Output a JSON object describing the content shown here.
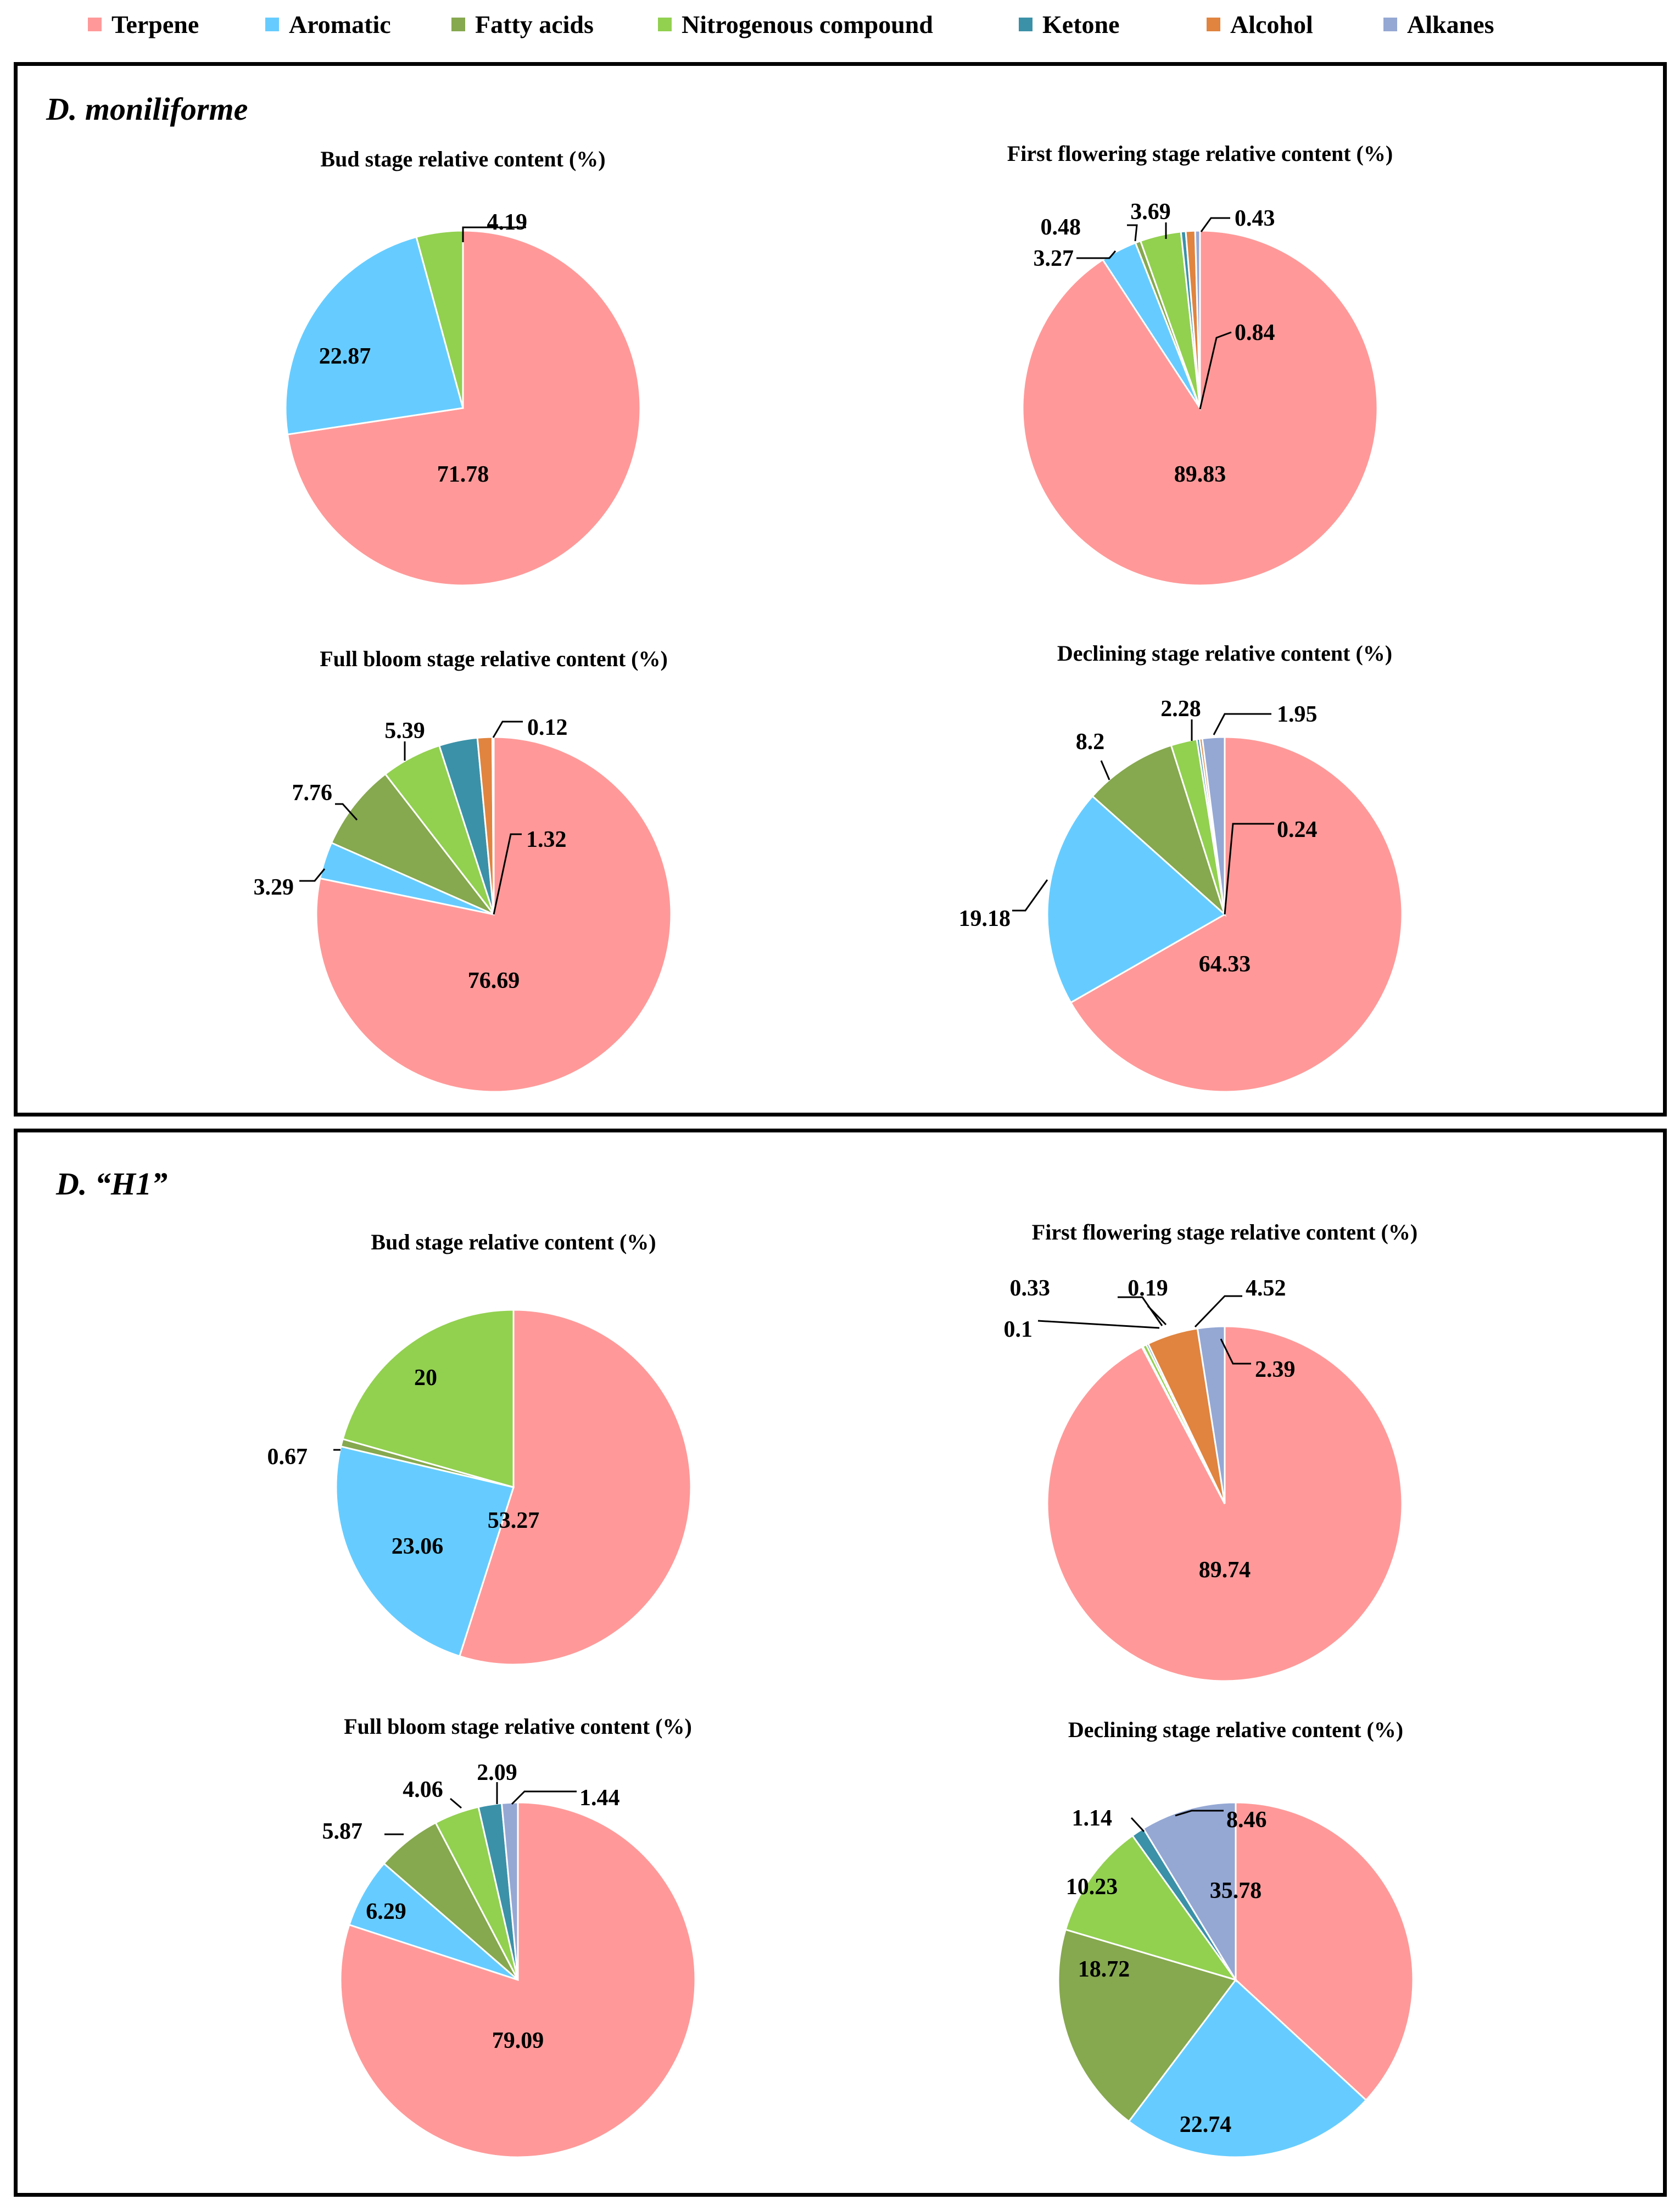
{
  "legend": [
    {
      "label": "Terpene",
      "color": "#ff9999"
    },
    {
      "label": "Aromatic",
      "color": "#66ccff"
    },
    {
      "label": "Fatty acids",
      "color": "#86a84f"
    },
    {
      "label": "Nitrogenous compound",
      "color": "#92d050"
    },
    {
      "label": "Ketone",
      "color": "#3b91a8"
    },
    {
      "label": "Alcohol",
      "color": "#e0843f"
    },
    {
      "label": "Alkanes",
      "color": "#95a8d4"
    }
  ],
  "panels": [
    {
      "title": "D. moniliforme"
    },
    {
      "title": "D. “H1”"
    }
  ],
  "chart_data": [
    {
      "type": "pie",
      "panel": 0,
      "title": "Bud stage relative content (%)",
      "slices": [
        {
          "category": "Terpene",
          "value": 71.78,
          "label": "71.78"
        },
        {
          "category": "Aromatic",
          "value": 22.87,
          "label": "22.87"
        },
        {
          "category": "Nitrogenous compound",
          "value": 4.19,
          "label": "4.19"
        }
      ]
    },
    {
      "type": "pie",
      "panel": 0,
      "title": "First flowering stage relative content (%)",
      "slices": [
        {
          "category": "Terpene",
          "value": 89.83,
          "label": "89.83"
        },
        {
          "category": "Aromatic",
          "value": 3.27,
          "label": "3.27"
        },
        {
          "category": "Fatty acids",
          "value": 0.48,
          "label": "0.48"
        },
        {
          "category": "Nitrogenous compound",
          "value": 3.69,
          "label": "3.69"
        },
        {
          "category": "Ketone",
          "value": 0.43,
          "label": "0.43"
        },
        {
          "category": "Alcohol",
          "value": 0.84,
          "label": "0.84"
        },
        {
          "category": "Alkanes",
          "value": 0.43,
          "label": ""
        }
      ]
    },
    {
      "type": "pie",
      "panel": 0,
      "title": "Full bloom stage relative content (%)",
      "slices": [
        {
          "category": "Terpene",
          "value": 76.69,
          "label": "76.69"
        },
        {
          "category": "Aromatic",
          "value": 3.29,
          "label": "3.29"
        },
        {
          "category": "Fatty acids",
          "value": 7.76,
          "label": "7.76"
        },
        {
          "category": "Nitrogenous compound",
          "value": 5.39,
          "label": "5.39"
        },
        {
          "category": "Ketone",
          "value": 3.43,
          "label": ""
        },
        {
          "category": "Alcohol",
          "value": 1.32,
          "label": "1.32"
        },
        {
          "category": "Alkanes",
          "value": 0.12,
          "label": "0.12"
        }
      ]
    },
    {
      "type": "pie",
      "panel": 0,
      "title": "Declining stage relative content (%)",
      "slices": [
        {
          "category": "Terpene",
          "value": 64.33,
          "label": "64.33"
        },
        {
          "category": "Aromatic",
          "value": 19.18,
          "label": "19.18"
        },
        {
          "category": "Fatty acids",
          "value": 8.2,
          "label": "8.2"
        },
        {
          "category": "Nitrogenous compound",
          "value": 2.28,
          "label": "2.28"
        },
        {
          "category": "Ketone",
          "value": 0.24,
          "label": "0.24"
        },
        {
          "category": "Alcohol",
          "value": 0.24,
          "label": ""
        },
        {
          "category": "Alkanes",
          "value": 1.95,
          "label": "1.95"
        }
      ]
    },
    {
      "type": "pie",
      "panel": 1,
      "title": "Bud stage relative content (%)",
      "slices": [
        {
          "category": "Terpene",
          "value": 53.27,
          "label": "53.27"
        },
        {
          "category": "Aromatic",
          "value": 23.06,
          "label": "23.06"
        },
        {
          "category": "Fatty acids",
          "value": 0.67,
          "label": "0.67"
        },
        {
          "category": "Nitrogenous compound",
          "value": 20,
          "label": "20"
        }
      ]
    },
    {
      "type": "pie",
      "panel": 1,
      "title": "First flowering stage relative content (%)",
      "slices": [
        {
          "category": "Terpene",
          "value": 89.74,
          "label": "89.74"
        },
        {
          "category": "Aromatic",
          "value": 0.1,
          "label": "0.1"
        },
        {
          "category": "Nitrogenous compound",
          "value": 0.33,
          "label": "0.33"
        },
        {
          "category": "Ketone",
          "value": 0.19,
          "label": "0.19"
        },
        {
          "category": "Alcohol",
          "value": 4.52,
          "label": "4.52"
        },
        {
          "category": "Alkanes",
          "value": 2.39,
          "label": "2.39"
        }
      ]
    },
    {
      "type": "pie",
      "panel": 1,
      "title": "Full bloom stage relative content (%)",
      "slices": [
        {
          "category": "Terpene",
          "value": 79.09,
          "label": "79.09"
        },
        {
          "category": "Aromatic",
          "value": 6.29,
          "label": "6.29"
        },
        {
          "category": "Fatty acids",
          "value": 5.87,
          "label": "5.87"
        },
        {
          "category": "Nitrogenous compound",
          "value": 4.06,
          "label": "4.06"
        },
        {
          "category": "Ketone",
          "value": 2.09,
          "label": "2.09"
        },
        {
          "category": "Alkanes",
          "value": 1.44,
          "label": "1.44"
        }
      ]
    },
    {
      "type": "pie",
      "panel": 1,
      "title": "Declining stage relative content (%)",
      "slices": [
        {
          "category": "Terpene",
          "value": 35.78,
          "label": "35.78"
        },
        {
          "category": "Aromatic",
          "value": 22.74,
          "label": "22.74"
        },
        {
          "category": "Fatty acids",
          "value": 18.72,
          "label": "18.72"
        },
        {
          "category": "Nitrogenous compound",
          "value": 10.23,
          "label": "10.23"
        },
        {
          "category": "Ketone",
          "value": 1.14,
          "label": "1.14"
        },
        {
          "category": "Alkanes",
          "value": 8.46,
          "label": "8.46"
        }
      ]
    }
  ]
}
